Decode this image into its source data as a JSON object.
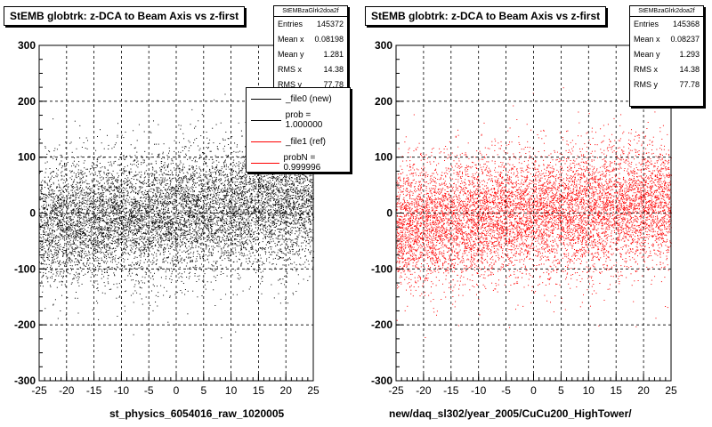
{
  "chart_data": [
    {
      "type": "scatter",
      "title": "StEMB globtrk: z-DCA to Beam Axis vs z-first",
      "xlabel": "st_physics_6054016_raw_1020005",
      "ylabel": "",
      "xlim": [
        -25,
        25
      ],
      "ylim": [
        -300,
        300
      ],
      "xticks": [
        "-25",
        "-20",
        "-15",
        "-10",
        "-5",
        "0",
        "5",
        "10",
        "15",
        "20",
        "25"
      ],
      "yticks": [
        "300",
        "200",
        "100",
        "0",
        "-100",
        "-200",
        "-300"
      ],
      "grid": true,
      "color": "#000000",
      "stats": {
        "name": "StEMBzaGlrk2doa2f",
        "entries": "145372",
        "mean_x": "0.08198",
        "mean_y": "1.281",
        "rms_x": "14.38",
        "rms_y": "77.78"
      },
      "series": [
        {
          "name": "_file0 (new)",
          "x": [
            -25,
            25
          ],
          "y_center": [
            -20,
            20
          ],
          "y_spread": 78
        }
      ]
    },
    {
      "type": "scatter",
      "title": "StEMB globtrk: z-DCA to Beam Axis vs z-first",
      "xlabel": "new/daq_sl302/year_2005/CuCu200_HighTower/",
      "ylabel": "",
      "xlim": [
        -25,
        25
      ],
      "ylim": [
        -300,
        300
      ],
      "xticks": [
        "-25",
        "-20",
        "-15",
        "-10",
        "-5",
        "0",
        "5",
        "10",
        "15",
        "20",
        "25"
      ],
      "yticks": [
        "300",
        "200",
        "100",
        "0",
        "-100",
        "-200",
        "-300"
      ],
      "grid": true,
      "color": "#ff0000",
      "stats": {
        "name": "StEMBzaGlrk2doa2f",
        "entries": "145368",
        "mean_x": "0.08237",
        "mean_y": "1.293",
        "rms_x": "14.38",
        "rms_y": "77.78"
      },
      "series": [
        {
          "name": "_file1 (ref)",
          "x": [
            -25,
            25
          ],
          "y_center": [
            -20,
            20
          ],
          "y_spread": 78
        }
      ]
    }
  ],
  "stats_labels": {
    "entries": "Entries",
    "mean_x": "Mean x",
    "mean_y": "Mean y",
    "rms_x": "RMS x",
    "rms_y": "RMS y"
  },
  "legend": {
    "entries": [
      {
        "label": "_file0 (new)",
        "color": "#000000"
      },
      {
        "label": "prob = 1.000000",
        "color": "#000000"
      },
      {
        "label": "_file1 (ref)",
        "color": "#ff0000"
      },
      {
        "label": "probN = 0.999996",
        "color": "#ff0000"
      }
    ]
  }
}
